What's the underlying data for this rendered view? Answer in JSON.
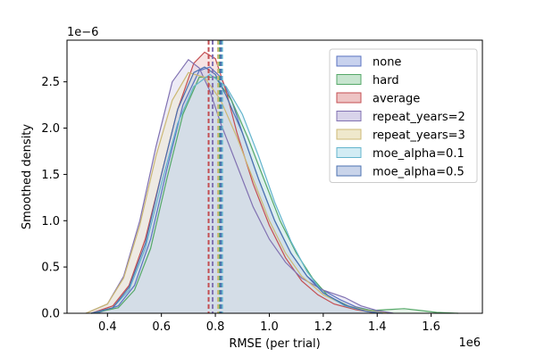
{
  "chart_data": {
    "type": "area",
    "xlabel": "RMSE (per trial)",
    "ylabel": "Smoothed density",
    "x_multiplier_label": "1e6",
    "y_multiplier_label": "1e−6",
    "xlim": [
      0.25,
      1.79
    ],
    "ylim": [
      0,
      2.95
    ],
    "x_ticks": [
      0.4,
      0.6,
      0.8,
      1.0,
      1.2,
      1.4,
      1.6
    ],
    "x_tick_labels": [
      "0.4",
      "0.6",
      "0.8",
      "1.0",
      "1.2",
      "1.4",
      "1.6"
    ],
    "y_ticks": [
      0.0,
      0.5,
      1.0,
      1.5,
      2.0,
      2.5
    ],
    "y_tick_labels": [
      "0.0",
      "0.5",
      "1.0",
      "1.5",
      "2.0",
      "2.5"
    ],
    "legend_position": "top-right",
    "grid": false,
    "series": [
      {
        "name": "none",
        "color": "#5a72c0",
        "fill": "#c8d2ee",
        "mean": 0.82,
        "x": [
          0.36,
          0.44,
          0.5,
          0.56,
          0.62,
          0.68,
          0.74,
          0.78,
          0.82,
          0.86,
          0.9,
          0.96,
          1.02,
          1.08,
          1.14,
          1.2,
          1.26,
          1.32,
          1.38,
          1.44
        ],
        "y": [
          0.0,
          0.08,
          0.3,
          0.8,
          1.55,
          2.25,
          2.62,
          2.66,
          2.55,
          2.3,
          1.95,
          1.45,
          1.0,
          0.65,
          0.4,
          0.25,
          0.15,
          0.07,
          0.03,
          0.0
        ]
      },
      {
        "name": "hard",
        "color": "#55a868",
        "fill": "#c7e5cf",
        "mean": 0.815,
        "x": [
          0.34,
          0.44,
          0.5,
          0.56,
          0.62,
          0.68,
          0.74,
          0.8,
          0.86,
          0.92,
          0.98,
          1.04,
          1.1,
          1.16,
          1.22,
          1.3,
          1.38,
          1.44,
          1.5,
          1.56,
          1.62,
          1.7
        ],
        "y": [
          0.0,
          0.06,
          0.25,
          0.7,
          1.45,
          2.15,
          2.55,
          2.55,
          2.3,
          1.9,
          1.45,
          1.0,
          0.65,
          0.38,
          0.18,
          0.07,
          0.03,
          0.04,
          0.05,
          0.03,
          0.01,
          0.0
        ]
      },
      {
        "name": "average",
        "color": "#c44e52",
        "fill": "#eec4c4",
        "mean": 0.775,
        "x": [
          0.34,
          0.42,
          0.48,
          0.54,
          0.6,
          0.66,
          0.72,
          0.76,
          0.8,
          0.84,
          0.88,
          0.94,
          1.0,
          1.06,
          1.12,
          1.18,
          1.24,
          1.32,
          1.4
        ],
        "y": [
          0.0,
          0.08,
          0.3,
          0.8,
          1.5,
          2.2,
          2.7,
          2.82,
          2.75,
          2.4,
          1.95,
          1.4,
          0.95,
          0.6,
          0.35,
          0.2,
          0.1,
          0.04,
          0.0
        ]
      },
      {
        "name": "repeat_years=2",
        "color": "#8172b2",
        "fill": "#d8d3ea",
        "mean": 0.79,
        "x": [
          0.32,
          0.4,
          0.46,
          0.52,
          0.58,
          0.64,
          0.7,
          0.74,
          0.78,
          0.82,
          0.88,
          0.94,
          1.0,
          1.06,
          1.12,
          1.2,
          1.28,
          1.34,
          1.4,
          1.46
        ],
        "y": [
          0.0,
          0.1,
          0.4,
          1.0,
          1.8,
          2.5,
          2.74,
          2.65,
          2.4,
          2.05,
          1.6,
          1.15,
          0.8,
          0.55,
          0.38,
          0.25,
          0.17,
          0.08,
          0.03,
          0.0
        ]
      },
      {
        "name": "repeat_years=3",
        "color": "#ccb974",
        "fill": "#efe8cc",
        "mean": 0.81,
        "x": [
          0.32,
          0.4,
          0.46,
          0.52,
          0.58,
          0.64,
          0.7,
          0.76,
          0.82,
          0.88,
          0.94,
          1.0,
          1.06,
          1.12,
          1.2,
          1.28,
          1.36,
          1.44
        ],
        "y": [
          0.0,
          0.1,
          0.38,
          0.95,
          1.7,
          2.3,
          2.6,
          2.55,
          2.3,
          1.9,
          1.45,
          1.0,
          0.65,
          0.4,
          0.2,
          0.09,
          0.03,
          0.0
        ]
      },
      {
        "name": "moe_alpha=0.1",
        "color": "#64b5cd",
        "fill": "#d2ecf4",
        "mean": 0.825,
        "x": [
          0.34,
          0.42,
          0.48,
          0.54,
          0.6,
          0.66,
          0.72,
          0.78,
          0.84,
          0.9,
          0.96,
          1.02,
          1.08,
          1.14,
          1.2,
          1.28,
          1.36,
          1.42
        ],
        "y": [
          0.0,
          0.06,
          0.25,
          0.7,
          1.4,
          2.05,
          2.45,
          2.58,
          2.45,
          2.15,
          1.7,
          1.2,
          0.78,
          0.45,
          0.22,
          0.08,
          0.02,
          0.0
        ]
      },
      {
        "name": "moe_alpha=0.5",
        "color": "#4c72b0",
        "fill": "#c9d4ea",
        "mean": 0.82,
        "x": [
          0.34,
          0.42,
          0.48,
          0.54,
          0.6,
          0.66,
          0.72,
          0.76,
          0.8,
          0.84,
          0.9,
          0.96,
          1.02,
          1.08,
          1.14,
          1.2,
          1.28,
          1.36,
          1.42
        ],
        "y": [
          0.0,
          0.06,
          0.28,
          0.75,
          1.5,
          2.2,
          2.6,
          2.66,
          2.58,
          2.35,
          1.95,
          1.45,
          1.0,
          0.65,
          0.4,
          0.22,
          0.09,
          0.02,
          0.0
        ]
      }
    ]
  }
}
